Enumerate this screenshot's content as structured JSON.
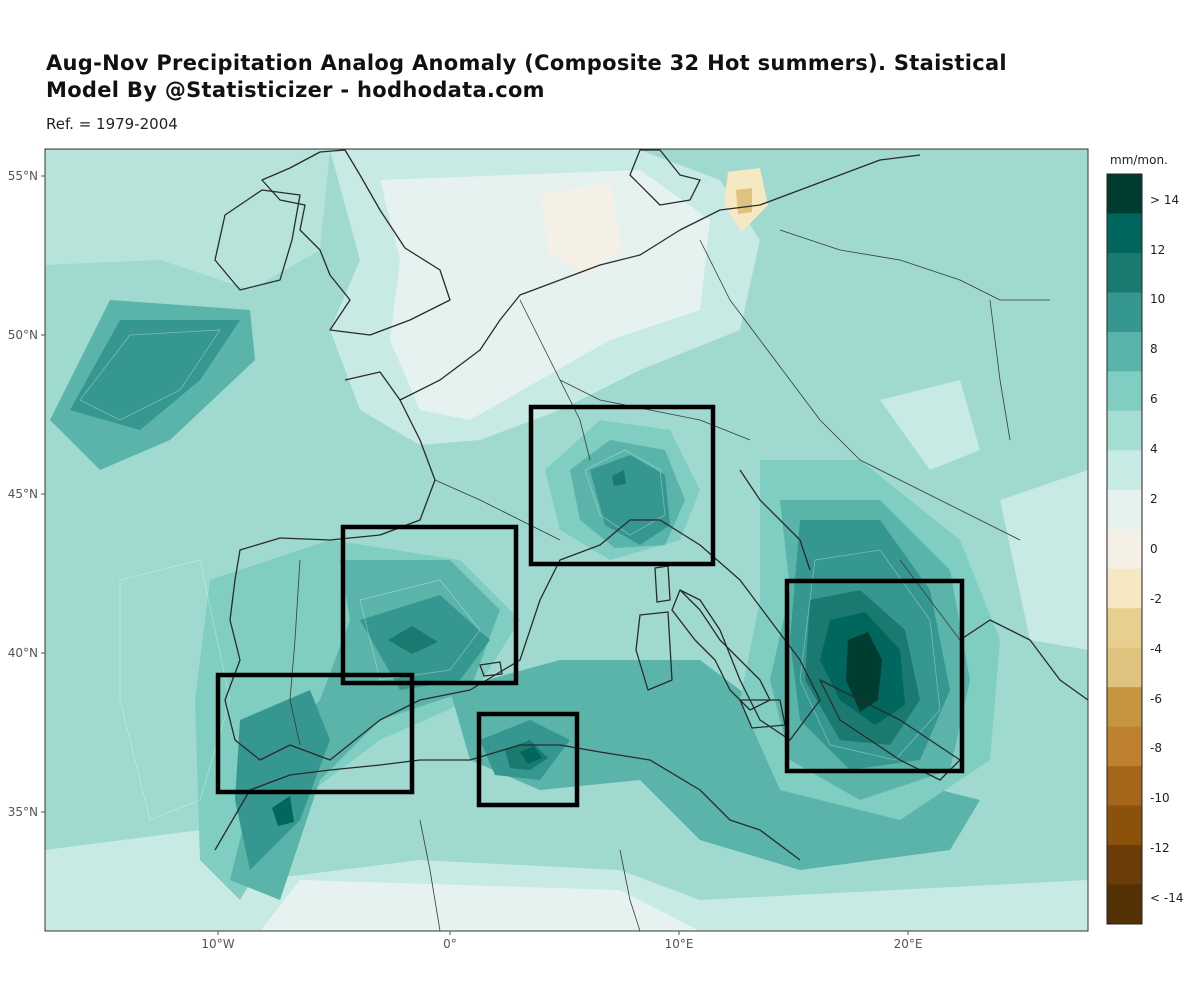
{
  "header": {
    "title_line1": "Aug-Nov Precipitation Analog Anomaly (Composite 32 Hot summers). Staistical",
    "title_line2": "Model By @Statisticizer - hodhodata.com",
    "subtitle": "Ref. = 1979-2004"
  },
  "map": {
    "lat_ticks": [
      "55°N",
      "50°N",
      "45°N",
      "40°N",
      "35°N"
    ],
    "lon_ticks": [
      "10°W",
      "0°",
      "10°E",
      "20°E"
    ],
    "regions_highlighted": 5
  },
  "legend": {
    "title": "mm/mon.",
    "labels": [
      "> 14",
      "12",
      "10",
      "8",
      "6",
      "4",
      "2",
      "0",
      "-2",
      "-4",
      "-6",
      "-8",
      "-10",
      "-12",
      "< -14"
    ],
    "colors": [
      "#003c30",
      "#01665e",
      "#1a7a70",
      "#35978f",
      "#5ab4a9",
      "#80cdc1",
      "#a6ddd3",
      "#c7eae5",
      "#e6f2f0",
      "#f5f0e6",
      "#f6e8c3",
      "#e9cf8f",
      "#dfc27d",
      "#c6963f",
      "#bf812d",
      "#a5661c",
      "#8c510a",
      "#6b3c07",
      "#543005"
    ]
  },
  "colors": {
    "frame": "#000000",
    "coast": "#2b2b2b",
    "sea_base": "#9fd9cf"
  }
}
